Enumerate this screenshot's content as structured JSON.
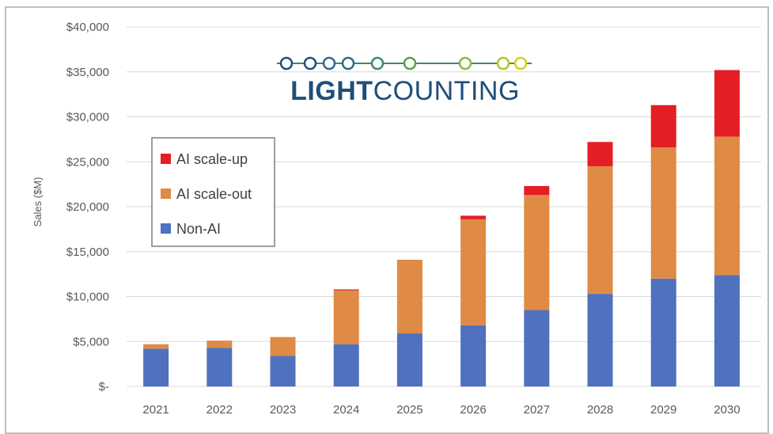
{
  "chart_data": {
    "type": "bar",
    "stacked": true,
    "categories": [
      "2021",
      "2022",
      "2023",
      "2024",
      "2025",
      "2026",
      "2027",
      "2028",
      "2029",
      "2030"
    ],
    "series": [
      {
        "name": "Non-AI",
        "color": "#4f71be",
        "values": [
          4200,
          4300,
          3400,
          4700,
          5900,
          6800,
          8500,
          10300,
          12000,
          12400
        ]
      },
      {
        "name": "AI scale-out",
        "color": "#df8a45",
        "values": [
          500,
          800,
          2100,
          6000,
          8200,
          11800,
          12800,
          14200,
          14600,
          15400
        ]
      },
      {
        "name": "AI scale-up",
        "color": "#e31e24",
        "values": [
          0,
          0,
          0,
          100,
          0,
          400,
          1000,
          2700,
          4700,
          7400
        ]
      }
    ],
    "ylabel": "Sales ($M)",
    "ylim": [
      0,
      40000
    ],
    "y_ticks": [
      "$-",
      "$5,000",
      "$10,000",
      "$15,000",
      "$20,000",
      "$25,000",
      "$30,000",
      "$35,000",
      "$40,000"
    ],
    "grid": true,
    "legend_position": "left",
    "legend": [
      "AI scale-up",
      "AI scale-out",
      "Non-AI"
    ]
  },
  "logo": {
    "text_bold": "LIGHT",
    "text_light": "COUNTING"
  }
}
